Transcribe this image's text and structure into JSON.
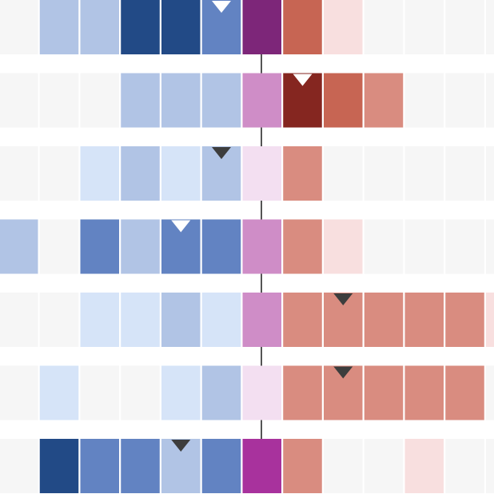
{
  "chart_data": {
    "type": "heatmap",
    "title": "",
    "xlabel": "",
    "ylabel": "",
    "grid": false,
    "legend": "none",
    "colors": {
      "empty": "#f6f6f6",
      "blue_1": "#d6e4f8",
      "blue_2": "#b1c4e5",
      "blue_3": "#6283c2",
      "blue_4": "#224a86",
      "purple_1": "#f3dff1",
      "purple_2": "#cf8dc7",
      "purple_3": "#a8329d",
      "purple_4": "#7d2679",
      "red_1": "#f8dfdf",
      "red_2": "#d98c80",
      "red_3": "#c76553",
      "red_4": "#852620",
      "marker_dark": "#3d3d3d",
      "marker_light": "#ffffff",
      "center_line": "#555555"
    },
    "rows": [
      {
        "cells": [
          "empty",
          "blue_2",
          "blue_2",
          "blue_4",
          "blue_4",
          "blue_3",
          "purple_4",
          "red_3",
          "red_1",
          "empty",
          "empty",
          "empty",
          "empty"
        ],
        "marker": {
          "col": 5,
          "color": "marker_light"
        }
      },
      {
        "cells": [
          "empty",
          "empty",
          "empty",
          "blue_2",
          "blue_2",
          "blue_2",
          "purple_2",
          "red_4",
          "red_3",
          "red_2",
          "empty",
          "empty",
          "empty"
        ],
        "marker": {
          "col": 7,
          "color": "marker_light"
        }
      },
      {
        "cells": [
          "empty",
          "empty",
          "blue_1",
          "blue_2",
          "blue_1",
          "blue_2",
          "purple_1",
          "red_2",
          "empty",
          "empty",
          "empty",
          "empty",
          "empty"
        ],
        "marker": {
          "col": 5,
          "color": "marker_dark"
        }
      },
      {
        "cells": [
          "blue_2",
          "empty",
          "blue_3",
          "blue_2",
          "blue_3",
          "blue_3",
          "purple_2",
          "red_2",
          "red_1",
          "empty",
          "empty",
          "empty",
          "empty"
        ],
        "marker": {
          "col": 4,
          "color": "marker_light"
        }
      },
      {
        "cells": [
          "empty",
          "empty",
          "blue_1",
          "blue_1",
          "blue_2",
          "blue_1",
          "purple_2",
          "red_2",
          "red_2",
          "red_2",
          "red_2",
          "red_2",
          "red_1"
        ],
        "marker": {
          "col": 8,
          "color": "marker_dark"
        }
      },
      {
        "cells": [
          "empty",
          "blue_1",
          "empty",
          "empty",
          "blue_1",
          "blue_2",
          "purple_1",
          "red_2",
          "red_2",
          "red_2",
          "red_2",
          "red_2",
          "empty"
        ],
        "marker": {
          "col": 8,
          "color": "marker_dark"
        }
      },
      {
        "cells": [
          "empty",
          "blue_4",
          "blue_3",
          "blue_3",
          "blue_2",
          "blue_3",
          "purple_3",
          "red_2",
          "empty",
          "empty",
          "red_1",
          "empty",
          "empty"
        ],
        "marker": {
          "col": 4,
          "color": "marker_dark"
        }
      }
    ]
  }
}
